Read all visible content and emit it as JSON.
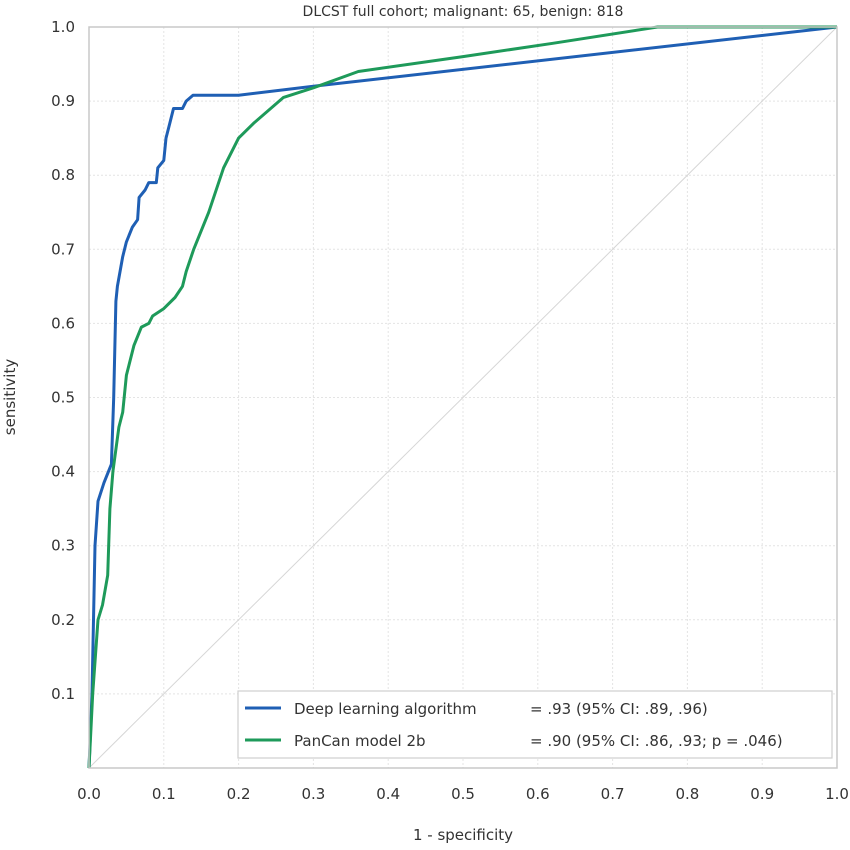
{
  "chart_data": {
    "type": "line",
    "title": "DLCST full cohort; malignant: 65, benign: 818",
    "xlabel": "1 - specificity",
    "ylabel": "sensitivity",
    "xlim": [
      0,
      1
    ],
    "ylim": [
      0,
      1
    ],
    "grid": true,
    "legend_position": "bottom-right",
    "xticks": [
      "0.0",
      "0.1",
      "0.2",
      "0.3",
      "0.4",
      "0.5",
      "0.6",
      "0.7",
      "0.8",
      "0.9",
      "1.0"
    ],
    "yticks": [
      "0.1",
      "0.2",
      "0.3",
      "0.4",
      "0.5",
      "0.6",
      "0.7",
      "0.8",
      "0.9",
      "1.0"
    ],
    "series": [
      {
        "name": "Deep learning algorithm",
        "legend_label": "Deep learning algorithm",
        "legend_stat": "= .93 (95% CI: .89, .96)",
        "color": "#1f5fb4",
        "x": [
          0,
          0.004,
          0.008,
          0.012,
          0.02,
          0.03,
          0.033,
          0.036,
          0.038,
          0.045,
          0.05,
          0.058,
          0.065,
          0.067,
          0.075,
          0.08,
          0.09,
          0.092,
          0.1,
          0.103,
          0.108,
          0.113,
          0.125,
          0.13,
          0.139,
          0.2,
          0.3,
          1.0
        ],
        "y": [
          0,
          0.1,
          0.3,
          0.36,
          0.385,
          0.41,
          0.5,
          0.63,
          0.65,
          0.69,
          0.71,
          0.73,
          0.74,
          0.77,
          0.78,
          0.79,
          0.79,
          0.81,
          0.82,
          0.85,
          0.87,
          0.89,
          0.89,
          0.9,
          0.908,
          0.908,
          0.92,
          1.0
        ]
      },
      {
        "name": "PanCan model 2b",
        "legend_label": "PanCan model 2b",
        "legend_stat": "= .90 (95% CI: .86, .93; p = .046)",
        "color": "#1e9a5a",
        "x": [
          0,
          0.005,
          0.012,
          0.018,
          0.025,
          0.028,
          0.032,
          0.04,
          0.045,
          0.05,
          0.06,
          0.07,
          0.08,
          0.085,
          0.1,
          0.115,
          0.125,
          0.13,
          0.14,
          0.16,
          0.18,
          0.2,
          0.22,
          0.26,
          0.3,
          0.36,
          0.5,
          0.62,
          0.76,
          1.0
        ],
        "y": [
          0,
          0.1,
          0.2,
          0.22,
          0.26,
          0.35,
          0.4,
          0.46,
          0.48,
          0.53,
          0.57,
          0.595,
          0.6,
          0.61,
          0.62,
          0.635,
          0.65,
          0.67,
          0.7,
          0.75,
          0.81,
          0.85,
          0.87,
          0.905,
          0.918,
          0.94,
          0.96,
          0.978,
          1.0,
          1.0
        ]
      }
    ]
  }
}
